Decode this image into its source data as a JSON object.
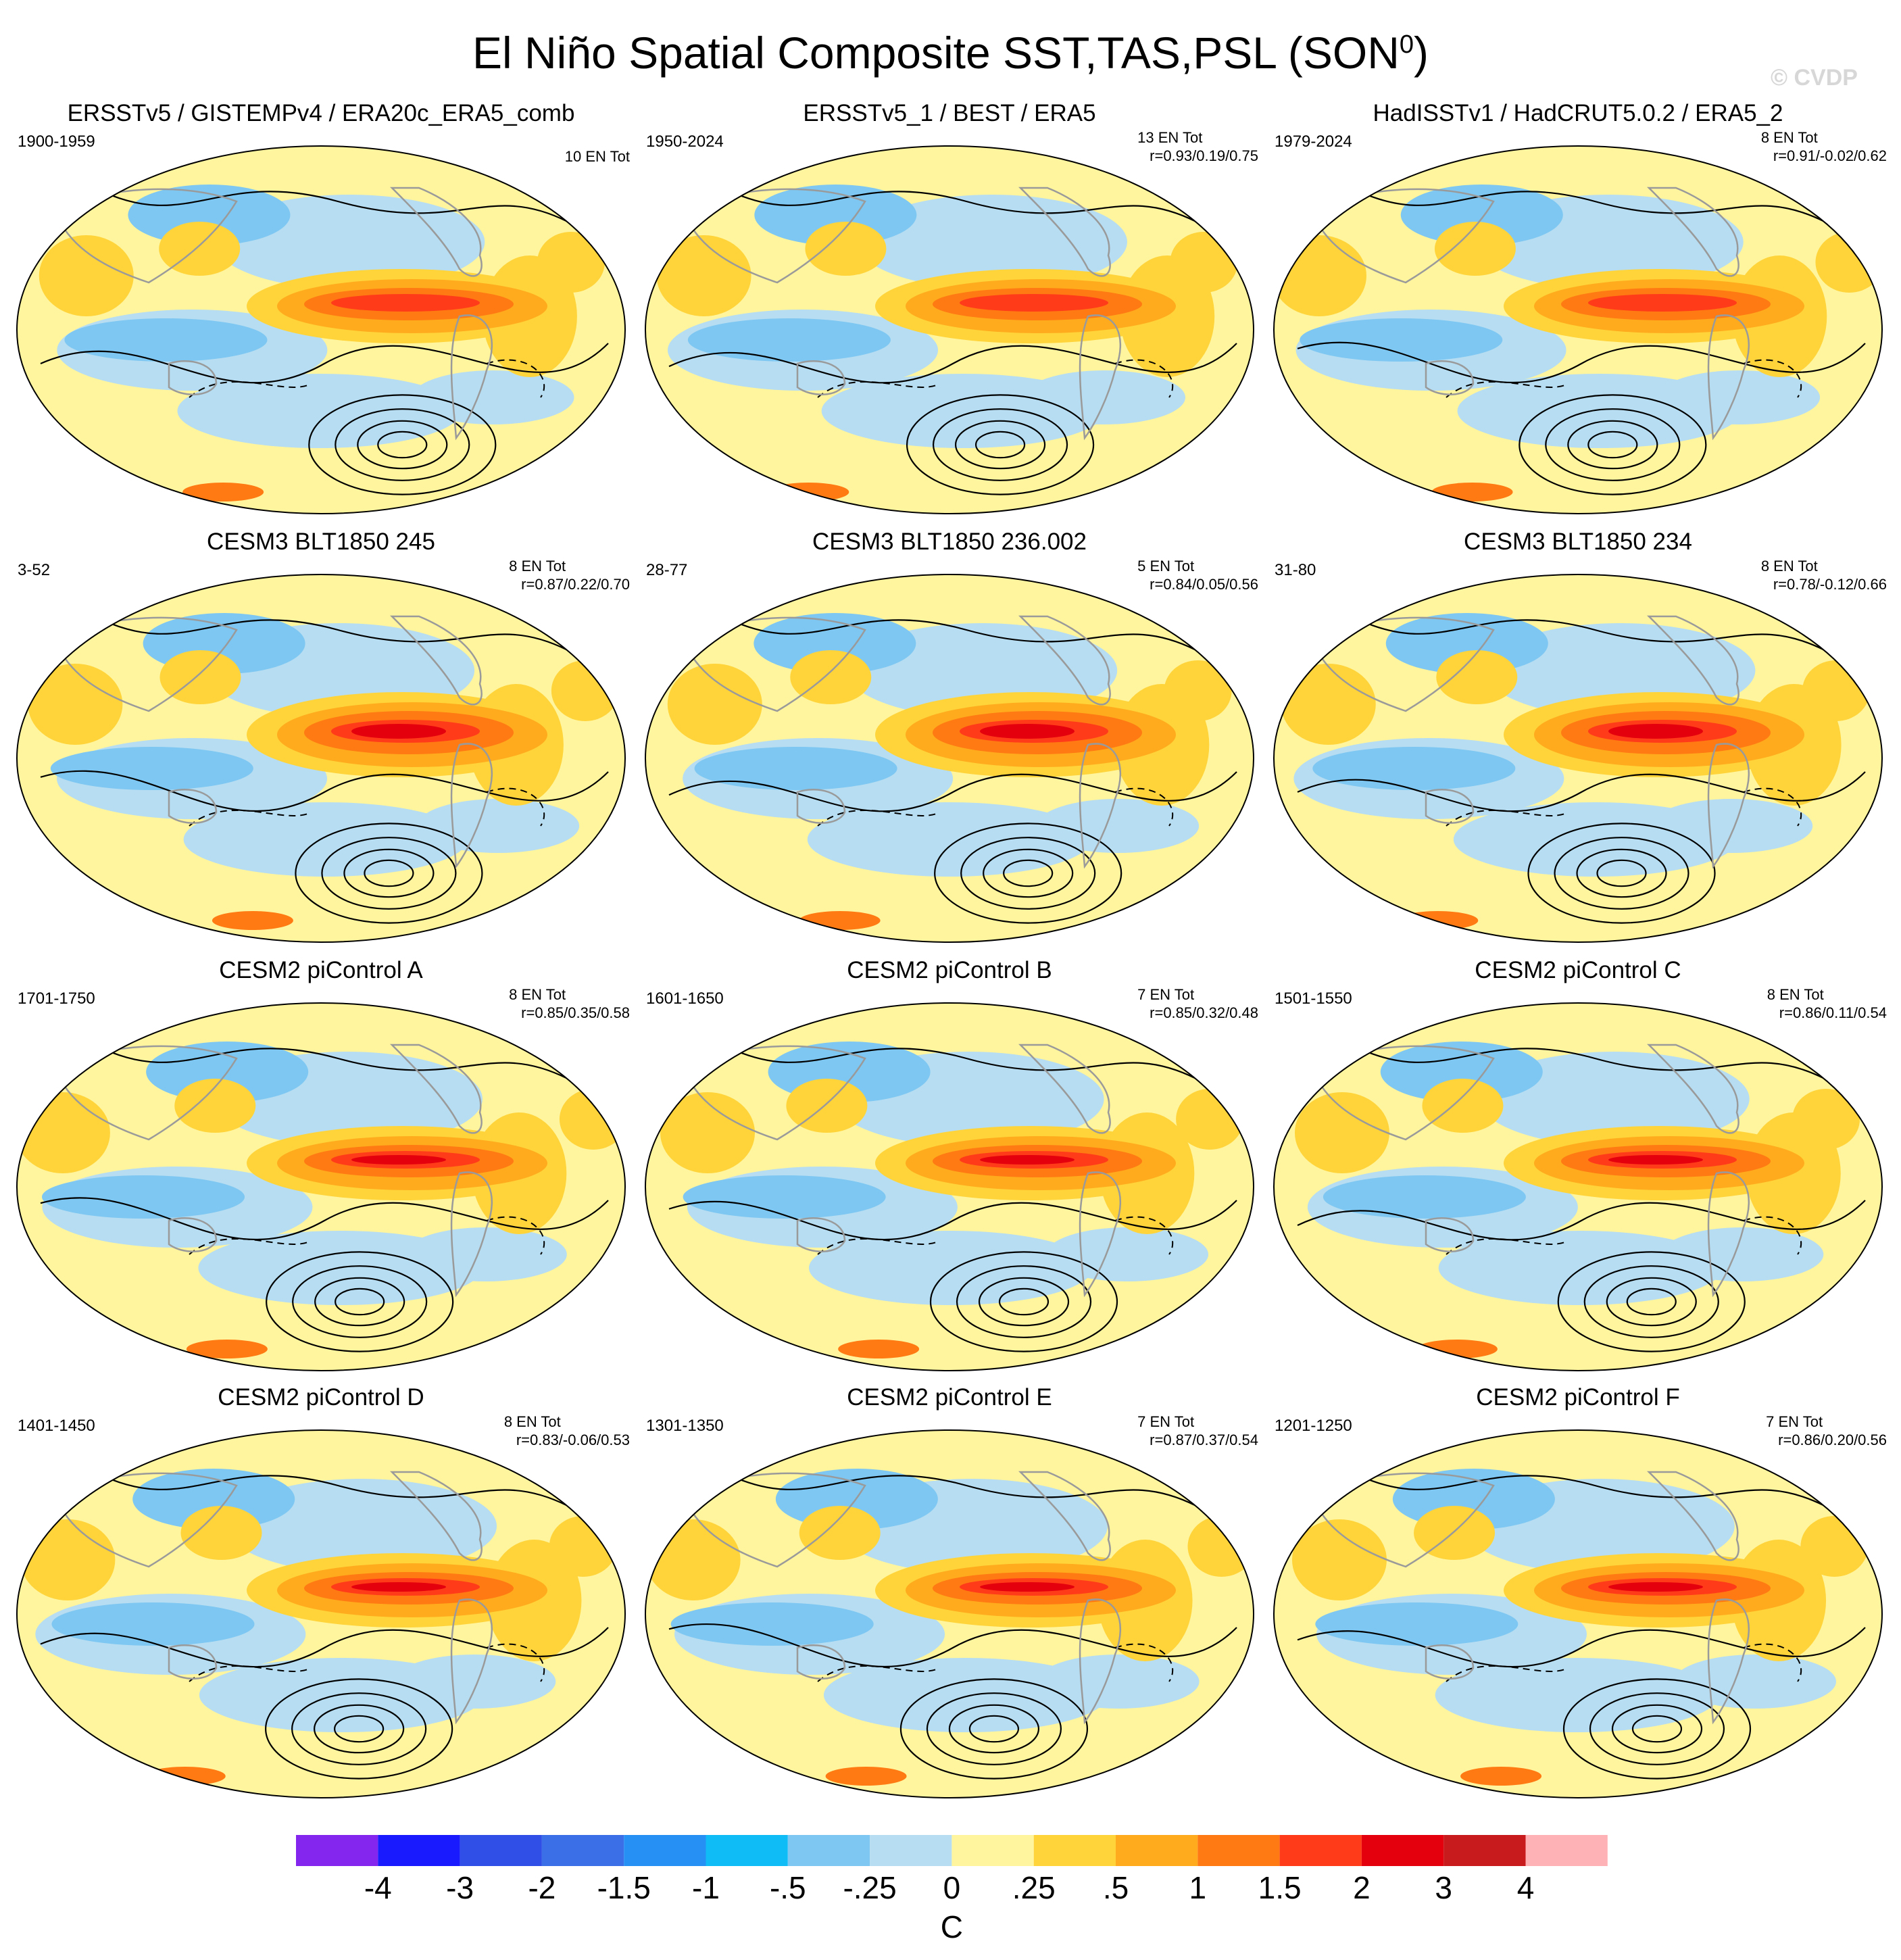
{
  "figure": {
    "title_main": "El Niño Spatial Composite SST,TAS,PSL (SON",
    "title_sup": "0",
    "title_end": ")",
    "watermark": "© CVDP"
  },
  "panels": [
    {
      "title": "ERSSTv5 / GISTEMPv4 / ERA20c_ERA5_comb",
      "years": "1900-1959",
      "entot": "10 EN Tot",
      "corr": ""
    },
    {
      "title": "ERSSTv5_1 / BEST / ERA5",
      "years": "1950-2024",
      "entot": "13 EN Tot",
      "corr": "r=0.93/0.19/0.75"
    },
    {
      "title": "HadISSTv1 / HadCRUT5.0.2 / ERA5_2",
      "years": "1979-2024",
      "entot": "8 EN Tot",
      "corr": "r=0.91/-0.02/0.62"
    },
    {
      "title": "CESM3 BLT1850 245",
      "years": "3-52",
      "entot": "8 EN Tot",
      "corr": "r=0.87/0.22/0.70"
    },
    {
      "title": "CESM3 BLT1850 236.002",
      "years": "28-77",
      "entot": "5 EN Tot",
      "corr": "r=0.84/0.05/0.56"
    },
    {
      "title": "CESM3 BLT1850 234",
      "years": "31-80",
      "entot": "8 EN Tot",
      "corr": "r=0.78/-0.12/0.66"
    },
    {
      "title": "CESM2 piControl A",
      "years": "1701-1750",
      "entot": "8 EN Tot",
      "corr": "r=0.85/0.35/0.58"
    },
    {
      "title": "CESM2 piControl B",
      "years": "1601-1650",
      "entot": "7 EN Tot",
      "corr": "r=0.85/0.32/0.48"
    },
    {
      "title": "CESM2 piControl C",
      "years": "1501-1550",
      "entot": "8 EN Tot",
      "corr": "r=0.86/0.11/0.54"
    },
    {
      "title": "CESM2 piControl D",
      "years": "1401-1450",
      "entot": "8 EN Tot",
      "corr": "r=0.83/-0.06/0.53"
    },
    {
      "title": "CESM2 piControl E",
      "years": "1301-1350",
      "entot": "7 EN Tot",
      "corr": "r=0.87/0.37/0.54"
    },
    {
      "title": "CESM2 piControl F",
      "years": "1201-1250",
      "entot": "7 EN Tot",
      "corr": "r=0.86/0.20/0.56"
    }
  ],
  "colorbar": {
    "unit": "C",
    "labels": [
      "-4",
      "-3",
      "-2",
      "-1.5",
      "-1",
      "-.5",
      "-.25",
      "0",
      ".25",
      ".5",
      "1",
      "1.5",
      "2",
      "3",
      "4"
    ],
    "colors": [
      "#8526ee",
      "#1a1aff",
      "#2f4fe6",
      "#3b6fe8",
      "#2690f5",
      "#0fbcf5",
      "#7dc7f2",
      "#b6ddf1",
      "#fff59e",
      "#ffd43a",
      "#ffab1d",
      "#ff7a12",
      "#ff3b1a",
      "#e4000c",
      "#c81b1e",
      "#ffb2b5"
    ]
  }
}
